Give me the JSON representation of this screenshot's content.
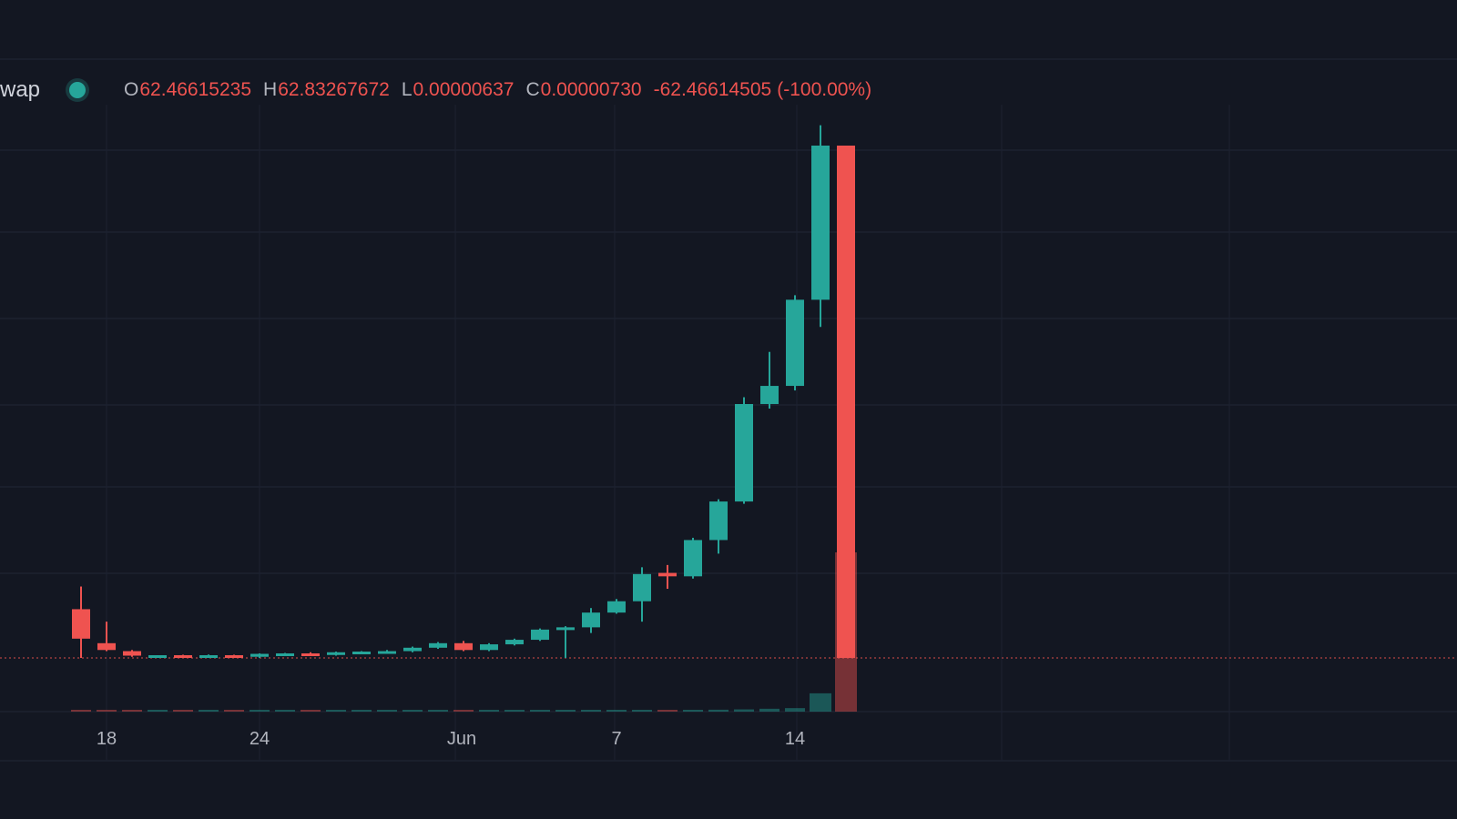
{
  "legend": {
    "symbol": "wap",
    "open_label": "O",
    "open": "62.46615235",
    "high_label": "H",
    "high": "62.83267672",
    "low_label": "L",
    "low": "0.00000637",
    "close_label": "C",
    "close": "0.00000730",
    "change": "-62.46614505",
    "change_pct": "(-100.00%)"
  },
  "colors": {
    "up": "#26a69a",
    "down": "#ef5350",
    "background": "#131722",
    "grid": "#1c2230",
    "text": "#b2b5be"
  },
  "chart_data": {
    "type": "candlestick",
    "title": "",
    "xlabel": "",
    "ylabel": "",
    "x_tick_labels": [
      {
        "label": "18",
        "day": 18
      },
      {
        "label": "24",
        "day": 24
      },
      {
        "label": "Jun",
        "day": 32
      },
      {
        "label": "7",
        "day": 38
      },
      {
        "label": "14",
        "day": 45
      }
    ],
    "grid": true,
    "candles": [
      {
        "day": 17,
        "open": 2.15,
        "high": 3.15,
        "low": 0.0,
        "close": 0.85
      },
      {
        "day": 18,
        "open": 0.65,
        "high": 1.6,
        "low": 0.3,
        "close": 0.35
      },
      {
        "day": 19,
        "open": 0.3,
        "high": 0.35,
        "low": 0.05,
        "close": 0.1
      },
      {
        "day": 20,
        "open": 0.05,
        "high": 0.12,
        "low": 0.0,
        "close": 0.12
      },
      {
        "day": 21,
        "open": 0.12,
        "high": 0.14,
        "low": 0.0,
        "close": 0.05
      },
      {
        "day": 22,
        "open": 0.05,
        "high": 0.15,
        "low": 0.0,
        "close": 0.12
      },
      {
        "day": 23,
        "open": 0.12,
        "high": 0.14,
        "low": 0.0,
        "close": 0.05
      },
      {
        "day": 24,
        "open": 0.05,
        "high": 0.2,
        "low": 0.0,
        "close": 0.18
      },
      {
        "day": 25,
        "open": 0.18,
        "high": 0.22,
        "low": 0.1,
        "close": 0.2
      },
      {
        "day": 26,
        "open": 0.2,
        "high": 0.25,
        "low": 0.12,
        "close": 0.15
      },
      {
        "day": 27,
        "open": 0.15,
        "high": 0.28,
        "low": 0.1,
        "close": 0.25
      },
      {
        "day": 28,
        "open": 0.25,
        "high": 0.3,
        "low": 0.18,
        "close": 0.28
      },
      {
        "day": 29,
        "open": 0.28,
        "high": 0.35,
        "low": 0.2,
        "close": 0.3
      },
      {
        "day": 30,
        "open": 0.3,
        "high": 0.5,
        "low": 0.25,
        "close": 0.45
      },
      {
        "day": 31,
        "open": 0.45,
        "high": 0.7,
        "low": 0.4,
        "close": 0.65
      },
      {
        "day": 32,
        "open": 0.65,
        "high": 0.75,
        "low": 0.3,
        "close": 0.35
      },
      {
        "day": 33,
        "open": 0.35,
        "high": 0.65,
        "low": 0.3,
        "close": 0.6
      },
      {
        "day": 34,
        "open": 0.6,
        "high": 0.85,
        "low": 0.55,
        "close": 0.8
      },
      {
        "day": 35,
        "open": 0.8,
        "high": 1.3,
        "low": 0.75,
        "close": 1.25
      },
      {
        "day": 36,
        "open": 1.25,
        "high": 1.4,
        "low": 0.0,
        "close": 1.35
      },
      {
        "day": 37,
        "open": 1.35,
        "high": 2.2,
        "low": 1.1,
        "close": 2.0
      },
      {
        "day": 38,
        "open": 2.0,
        "high": 2.6,
        "low": 1.95,
        "close": 2.5
      },
      {
        "day": 39,
        "open": 2.5,
        "high": 4.0,
        "low": 1.6,
        "close": 3.7
      },
      {
        "day": 40,
        "open": 3.75,
        "high": 4.1,
        "low": 3.05,
        "close": 3.6
      },
      {
        "day": 41,
        "open": 3.6,
        "high": 5.3,
        "low": 3.5,
        "close": 5.2
      },
      {
        "day": 42,
        "open": 5.2,
        "high": 7.0,
        "low": 4.6,
        "close": 6.9
      },
      {
        "day": 43,
        "open": 6.9,
        "high": 11.5,
        "low": 6.8,
        "close": 11.2
      },
      {
        "day": 44,
        "open": 11.2,
        "high": 13.5,
        "low": 11.0,
        "close": 12.0
      },
      {
        "day": 45,
        "open": 12.0,
        "high": 16.0,
        "low": 11.8,
        "close": 15.8
      },
      {
        "day": 46,
        "open": 15.8,
        "high": 23.5,
        "low": 14.6,
        "close": 22.6
      },
      {
        "day": 47,
        "open": 22.6,
        "high": 22.6,
        "low": 0.0,
        "close": 0.0
      }
    ],
    "volume": [
      {
        "day": 17,
        "value": 0.2
      },
      {
        "day": 18,
        "value": 0.2
      },
      {
        "day": 19,
        "value": 0.15
      },
      {
        "day": 20,
        "value": 0.15
      },
      {
        "day": 21,
        "value": 0.15
      },
      {
        "day": 22,
        "value": 0.15
      },
      {
        "day": 23,
        "value": 0.15
      },
      {
        "day": 24,
        "value": 0.15
      },
      {
        "day": 25,
        "value": 0.15
      },
      {
        "day": 26,
        "value": 0.15
      },
      {
        "day": 27,
        "value": 0.15
      },
      {
        "day": 28,
        "value": 0.15
      },
      {
        "day": 29,
        "value": 0.15
      },
      {
        "day": 30,
        "value": 0.15
      },
      {
        "day": 31,
        "value": 0.15
      },
      {
        "day": 32,
        "value": 0.15
      },
      {
        "day": 33,
        "value": 0.15
      },
      {
        "day": 34,
        "value": 0.2
      },
      {
        "day": 35,
        "value": 0.2
      },
      {
        "day": 36,
        "value": 0.2
      },
      {
        "day": 37,
        "value": 0.3
      },
      {
        "day": 38,
        "value": 0.5
      },
      {
        "day": 39,
        "value": 0.5
      },
      {
        "day": 40,
        "value": 0.5
      },
      {
        "day": 41,
        "value": 0.7
      },
      {
        "day": 42,
        "value": 1.2
      },
      {
        "day": 43,
        "value": 1.4
      },
      {
        "day": 44,
        "value": 1.8
      },
      {
        "day": 45,
        "value": 2.2
      },
      {
        "day": 46,
        "value": 11.5
      },
      {
        "day": 47,
        "value": 100
      }
    ]
  }
}
